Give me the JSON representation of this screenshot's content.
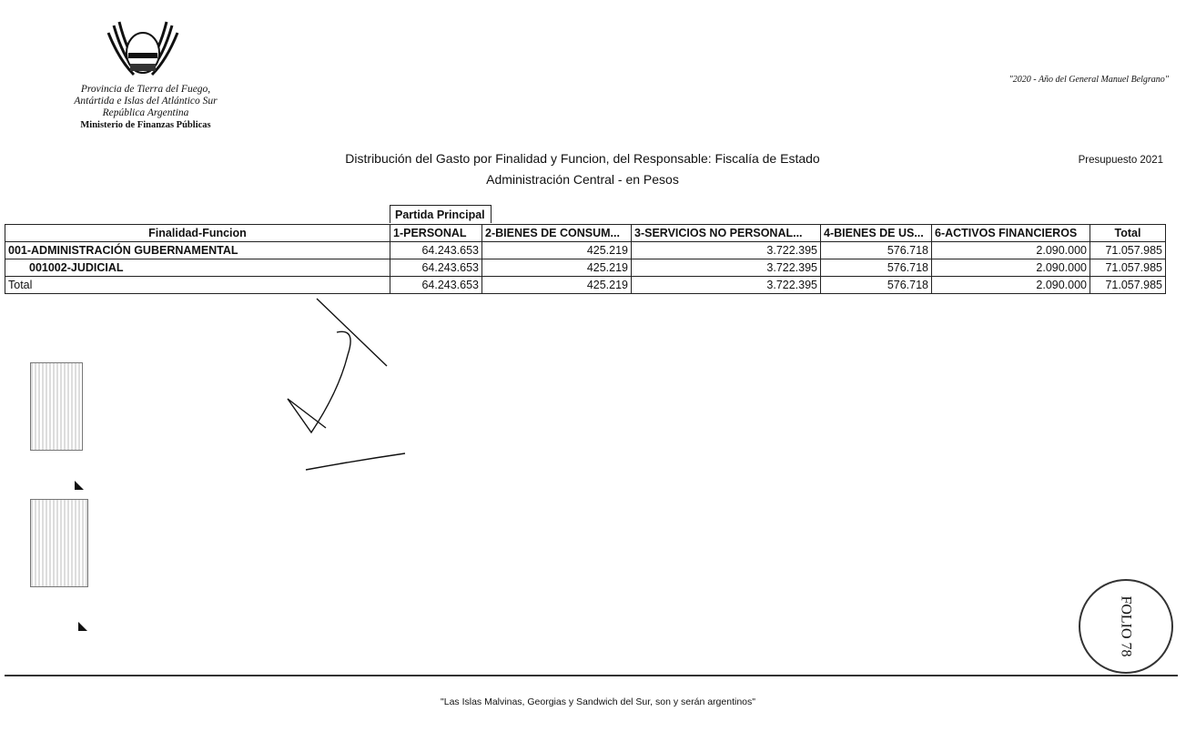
{
  "header": {
    "institution_lines": [
      "Provincia de Tierra del Fuego,",
      "Antártida e Islas del Atlántico Sur",
      "República Argentina"
    ],
    "ministry": "Ministerio de Finanzas Públicas",
    "motto": "\"2020 - Año del General Manuel Belgrano\""
  },
  "report": {
    "title": "Distribución del Gasto por Finalidad y Funcion, del Responsable: Fiscalía de Estado",
    "subtitle": "Administración Central  - en Pesos",
    "budget": "Presupuesto 2021",
    "group_header": "Partida Principal"
  },
  "table": {
    "columns": [
      "Finalidad-Funcion",
      "1-PERSONAL",
      "2-BIENES DE CONSUM...",
      "3-SERVICIOS NO PERSONAL...",
      "4-BIENES DE US...",
      "6-ACTIVOS FINANCIEROS",
      "Total"
    ],
    "rows": [
      {
        "label": "001-ADMINISTRACIÓN GUBERNAMENTAL",
        "values": [
          "64.243.653",
          "425.219",
          "3.722.395",
          "576.718",
          "2.090.000",
          "71.057.985"
        ]
      },
      {
        "label": "001002-JUDICIAL",
        "values": [
          "64.243.653",
          "425.219",
          "3.722.395",
          "576.718",
          "2.090.000",
          "71.057.985"
        ]
      },
      {
        "label": "Total",
        "values": [
          "64.243.653",
          "425.219",
          "3.722.395",
          "576.718",
          "2.090.000",
          "71.057.985"
        ]
      }
    ]
  },
  "stamp": {
    "text": "FOLIO 78"
  },
  "footer": "\"Las Islas Malvinas, Georgias y Sandwich del Sur, son y serán argentinos\""
}
